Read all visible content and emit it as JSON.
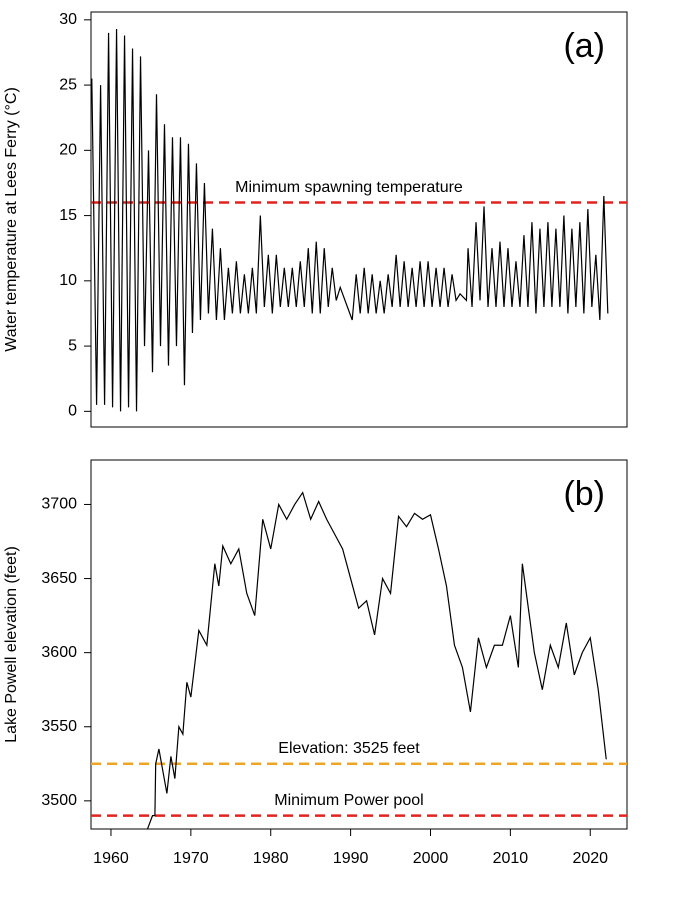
{
  "chart_data": [
    {
      "type": "line",
      "panel_label": "(a)",
      "y_label": "Water temperature at Lees Ferry (°C)",
      "xlim": [
        1957.5,
        2024.6
      ],
      "ylim": [
        -1.2,
        30.6
      ],
      "yticks": [
        0,
        5,
        10,
        15,
        20,
        25,
        30
      ],
      "hlines": [
        {
          "value": 16,
          "label": "Minimum spawning temperature",
          "color": "#e3231d"
        }
      ],
      "series": [
        {
          "name": "Water temperature",
          "color": "#000000",
          "x": [
            1957.6,
            1958.2,
            1958.7,
            1959.2,
            1959.7,
            1960.2,
            1960.7,
            1961.2,
            1961.7,
            1962.2,
            1962.7,
            1963.2,
            1963.7,
            1964.2,
            1964.7,
            1965.2,
            1965.7,
            1966.2,
            1966.7,
            1967.2,
            1967.7,
            1968.2,
            1968.7,
            1969.2,
            1969.7,
            1970.2,
            1970.7,
            1971.2,
            1971.7,
            1972.2,
            1972.7,
            1973.2,
            1973.7,
            1974.2,
            1974.7,
            1975.2,
            1975.7,
            1976.2,
            1976.7,
            1977.2,
            1977.7,
            1978.2,
            1978.7,
            1979.2,
            1979.7,
            1980.2,
            1980.7,
            1981.2,
            1981.7,
            1982.2,
            1982.7,
            1983.2,
            1983.7,
            1984.2,
            1984.7,
            1985.2,
            1985.7,
            1986.2,
            1986.7,
            1987.2,
            1987.7,
            1988.2,
            1988.7,
            1990.2,
            1990.7,
            1991.2,
            1991.7,
            1992.2,
            1992.7,
            1993.2,
            1993.7,
            1994.2,
            1994.7,
            1995.2,
            1995.7,
            1996.2,
            1996.7,
            1997.2,
            1997.7,
            1998.2,
            1998.7,
            1999.2,
            1999.7,
            2000.2,
            2000.7,
            2001.2,
            2001.7,
            2002.2,
            2002.7,
            2003.2,
            2003.7,
            2004.5,
            2004.7,
            2005.2,
            2005.7,
            2006.2,
            2006.7,
            2007.2,
            2007.7,
            2008.2,
            2008.7,
            2009.2,
            2009.7,
            2010.2,
            2010.7,
            2011.2,
            2011.7,
            2012.2,
            2012.7,
            2013.2,
            2013.7,
            2014.2,
            2014.7,
            2015.2,
            2015.7,
            2016.2,
            2016.7,
            2017.2,
            2017.7,
            2018.2,
            2018.7,
            2019.2,
            2019.7,
            2020.2,
            2020.7,
            2021.2,
            2021.7,
            2022.2
          ],
          "values": [
            25.5,
            0.5,
            25,
            0.5,
            29,
            0.3,
            29.3,
            0,
            28.8,
            0.3,
            27.8,
            0,
            27.2,
            5,
            20,
            3,
            24.3,
            5,
            22,
            3.5,
            21,
            5,
            21,
            2,
            20.5,
            6,
            19,
            7,
            17.5,
            7.5,
            14,
            7,
            12.5,
            7,
            11,
            7.5,
            11.5,
            7.5,
            10.5,
            7.5,
            11,
            7.5,
            15,
            8,
            12,
            7.5,
            12,
            8,
            11,
            8,
            11,
            8,
            11.5,
            8,
            12.5,
            7.5,
            13,
            7.5,
            12.5,
            8,
            11,
            8.5,
            9.5,
            7,
            10.5,
            7.5,
            11,
            7.5,
            10.5,
            7.5,
            10,
            7.5,
            10.5,
            8,
            12,
            8,
            11.5,
            8,
            11,
            8,
            11.5,
            8,
            11.5,
            8,
            11,
            8,
            11,
            8,
            10.5,
            8.5,
            9,
            8.5,
            12.5,
            8,
            14.5,
            8.5,
            15.7,
            8,
            12.5,
            8,
            13,
            8,
            12.5,
            8,
            11.5,
            8,
            13.5,
            8,
            14.5,
            7.5,
            14,
            8,
            14.5,
            8,
            14,
            8,
            15,
            7.5,
            14,
            8,
            14.5,
            7.5,
            15.5,
            8,
            12,
            7,
            16.5,
            7.5
          ]
        }
      ]
    },
    {
      "type": "line",
      "panel_label": "(b)",
      "y_label": "Lake Powell elevation (feet)",
      "xlim": [
        1957.5,
        2024.6
      ],
      "xticks": [
        1960,
        1970,
        1980,
        1990,
        2000,
        2010,
        2020
      ],
      "ylim": [
        3481,
        3730
      ],
      "yticks": [
        3500,
        3550,
        3600,
        3650,
        3700
      ],
      "hlines": [
        {
          "value": 3525,
          "label": "Elevation: 3525 feet",
          "color": "#f0a422"
        },
        {
          "value": 3490,
          "label": "Minimum Power pool",
          "color": "#e3231d"
        }
      ],
      "series": [
        {
          "name": "Lake Powell elevation",
          "color": "#000000",
          "x": [
            1964.5,
            1965.2,
            1965.5,
            1965.6,
            1966,
            1967,
            1967.5,
            1968,
            1968.5,
            1969,
            1969.5,
            1970,
            1971,
            1972,
            1973,
            1973.5,
            1974,
            1975,
            1976,
            1977,
            1978,
            1979,
            1980,
            1981,
            1982,
            1983,
            1984,
            1985,
            1986,
            1987,
            1988,
            1989,
            1990,
            1991,
            1992,
            1993,
            1994,
            1995,
            1996,
            1997,
            1998,
            1999,
            2000,
            2001,
            2002,
            2003,
            2004,
            2005,
            2006,
            2007,
            2008,
            2009,
            2010,
            2011,
            2011.5,
            2012,
            2013,
            2014,
            2015,
            2016,
            2017,
            2018,
            2019,
            2020,
            2021,
            2022
          ],
          "values": [
            3480,
            3490,
            3490,
            3525,
            3535,
            3505,
            3530,
            3515,
            3550,
            3545,
            3580,
            3570,
            3615,
            3605,
            3660,
            3645,
            3672,
            3660,
            3670,
            3640,
            3625,
            3690,
            3670,
            3700,
            3690,
            3700,
            3708,
            3690,
            3702,
            3690,
            3680,
            3670,
            3650,
            3630,
            3635,
            3612,
            3650,
            3640,
            3692,
            3685,
            3694,
            3690,
            3693,
            3670,
            3645,
            3605,
            3590,
            3560,
            3610,
            3590,
            3605,
            3605,
            3625,
            3590,
            3660,
            3640,
            3600,
            3575,
            3605,
            3590,
            3620,
            3585,
            3600,
            3610,
            3575,
            3528
          ]
        }
      ]
    }
  ]
}
